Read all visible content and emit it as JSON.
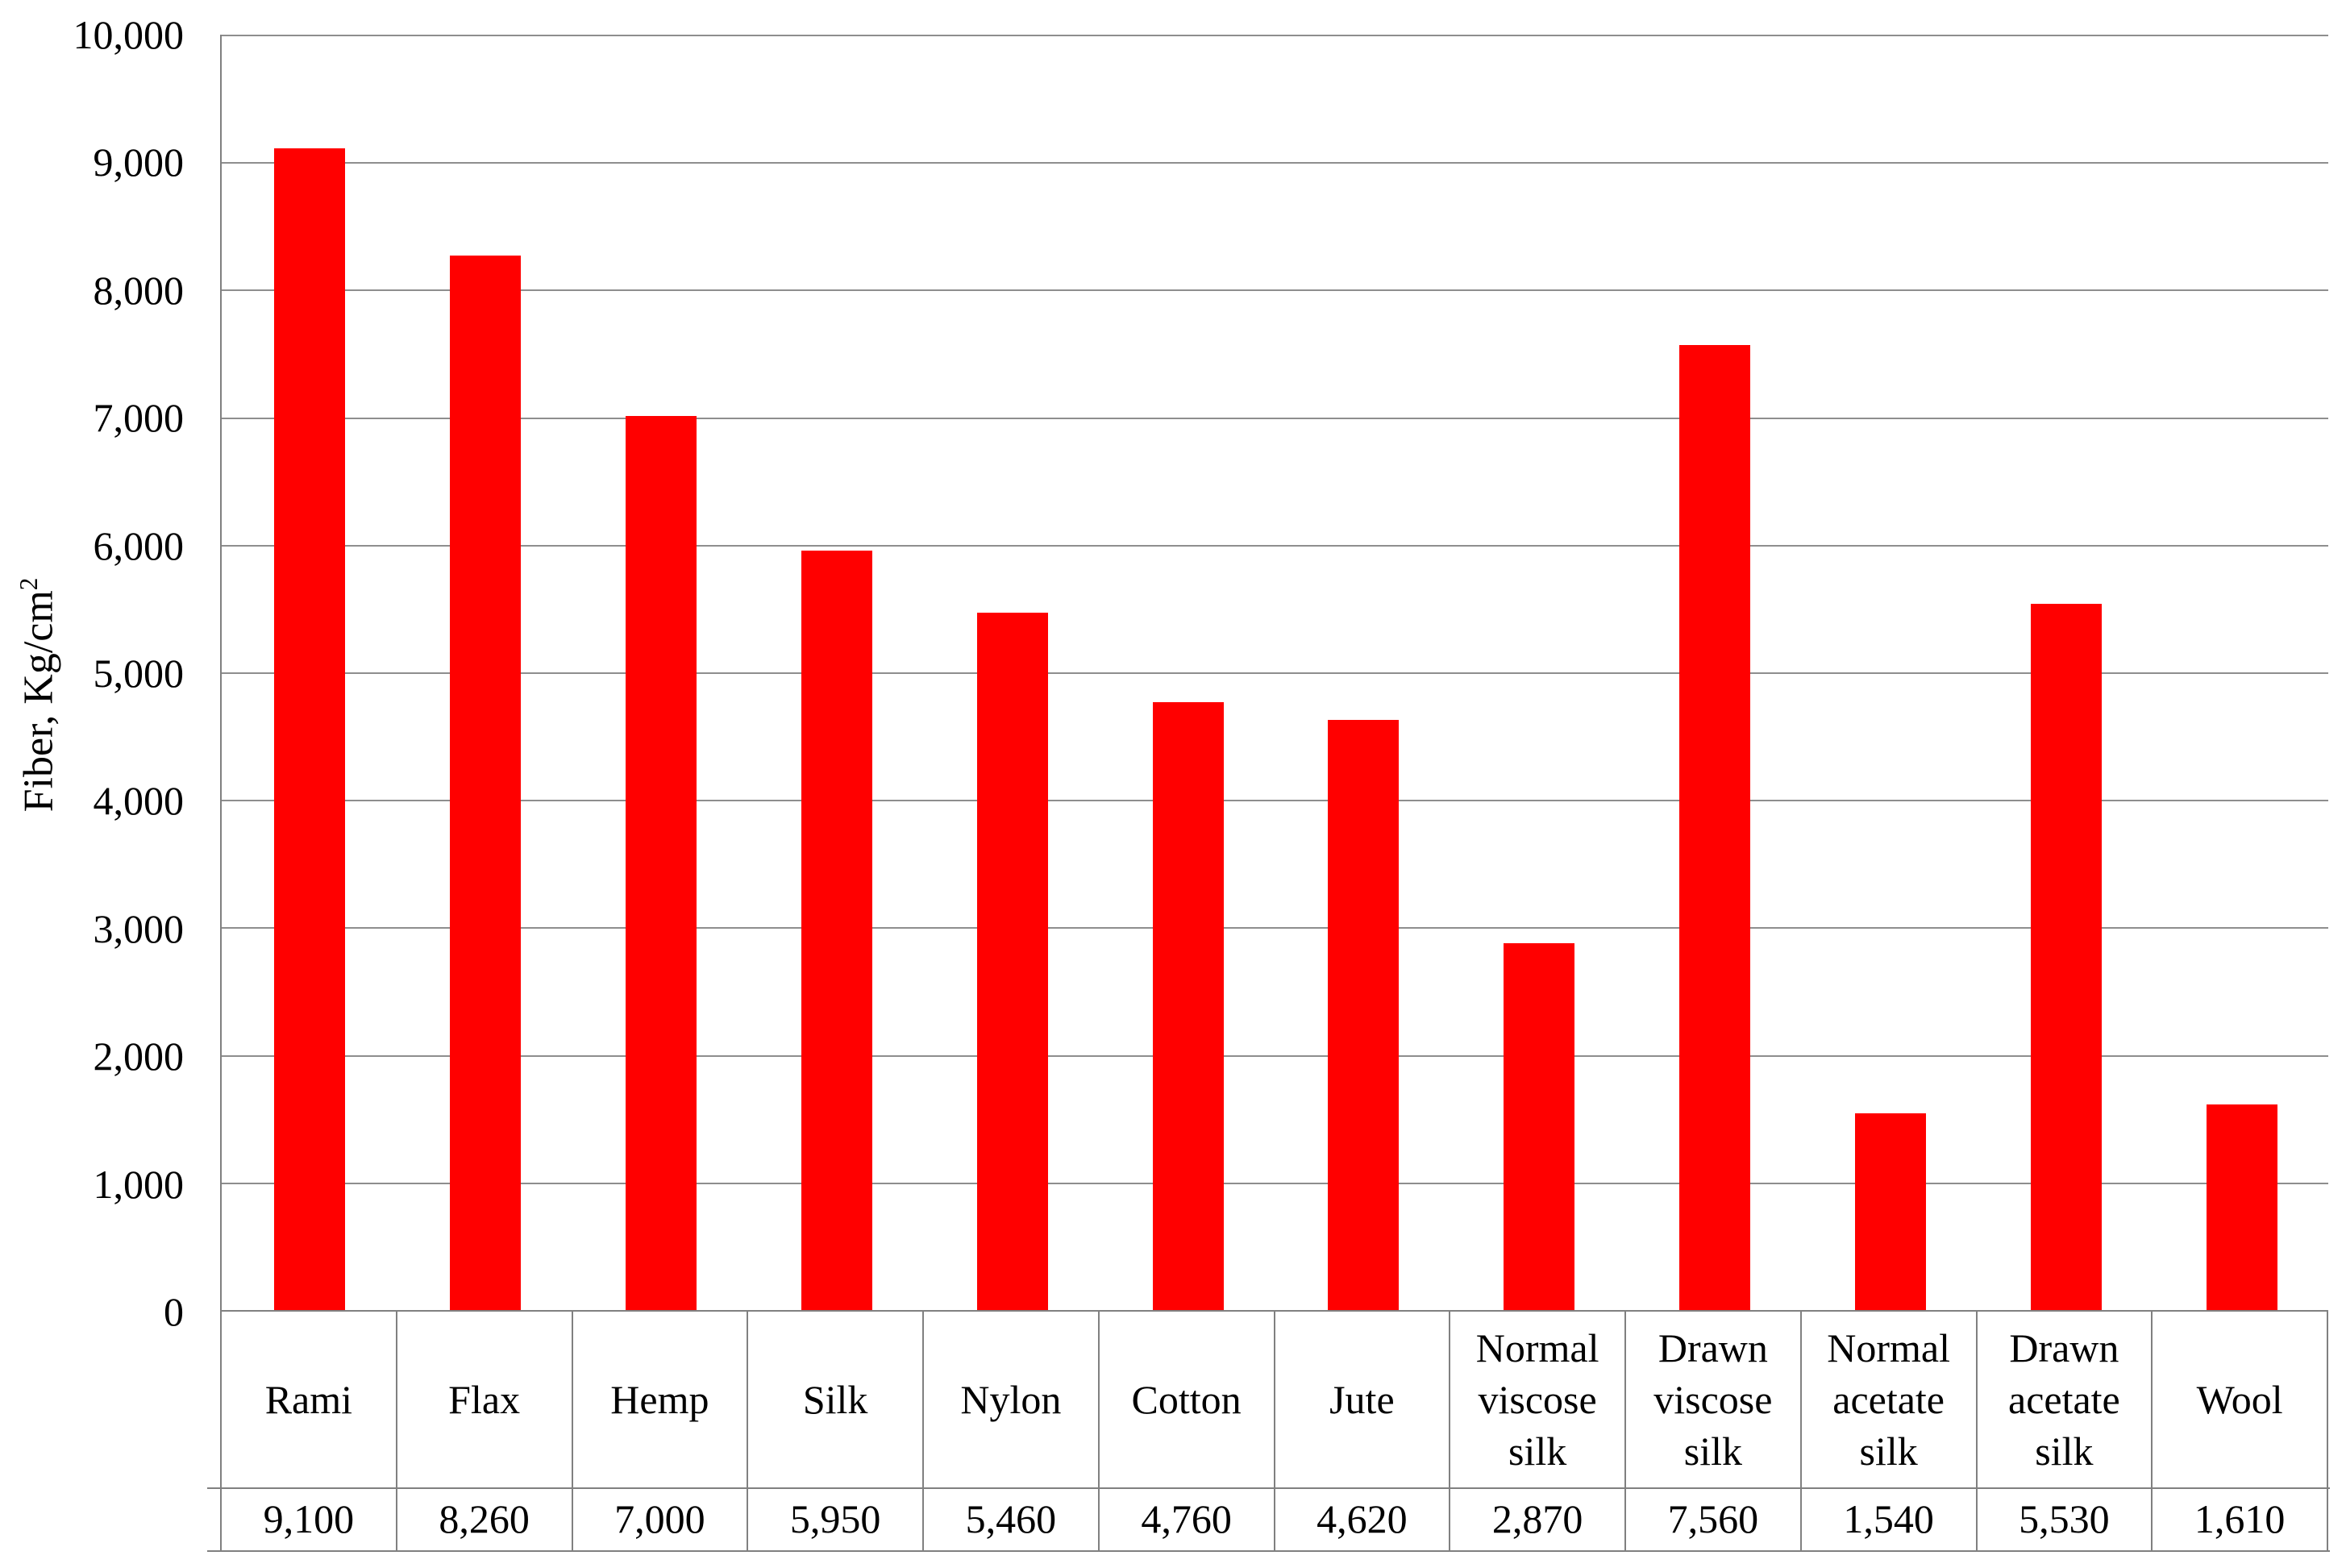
{
  "chart_data": {
    "type": "bar",
    "title": "",
    "xlabel": "",
    "ylabel": "Fiber, Kg/cm²",
    "ylabel_base": "Fiber, Kg/cm",
    "ylabel_superscript": "2",
    "categories": [
      "Rami",
      "Flax",
      "Hemp",
      "Silk",
      "Nylon",
      "Cotton",
      "Jute",
      "Normal viscose silk",
      "Drawn viscose silk",
      "Normal acetate silk",
      "Drawn acetate silk",
      "Wool"
    ],
    "values": [
      9100,
      8260,
      7000,
      5950,
      5460,
      4760,
      4620,
      2870,
      7560,
      1540,
      5530,
      1610
    ],
    "value_labels": [
      "9,100",
      "8,260",
      "7,000",
      "5,950",
      "5,460",
      "4,760",
      "4,620",
      "2,870",
      "7,560",
      "1,540",
      "5,530",
      "1,610"
    ],
    "y_ticks": [
      {
        "value": 10000,
        "label": "10,000"
      },
      {
        "value": 9000,
        "label": "9,000"
      },
      {
        "value": 8000,
        "label": "8,000"
      },
      {
        "value": 7000,
        "label": "7,000"
      },
      {
        "value": 6000,
        "label": "6,000"
      },
      {
        "value": 5000,
        "label": "5,000"
      },
      {
        "value": 4000,
        "label": "4,000"
      },
      {
        "value": 3000,
        "label": "3,000"
      },
      {
        "value": 2000,
        "label": "2,000"
      },
      {
        "value": 1000,
        "label": "1,000"
      },
      {
        "value": 0,
        "label": "0"
      }
    ],
    "ylim": [
      0,
      10000
    ],
    "grid": "horizontal-only",
    "legend": "none",
    "data_table_below_axis": true,
    "colors": {
      "bar": "#ff0000",
      "gridline": "#8e8e8e",
      "axis_and_table_border": "#808080",
      "text": "#000000",
      "background": "#ffffff"
    }
  }
}
